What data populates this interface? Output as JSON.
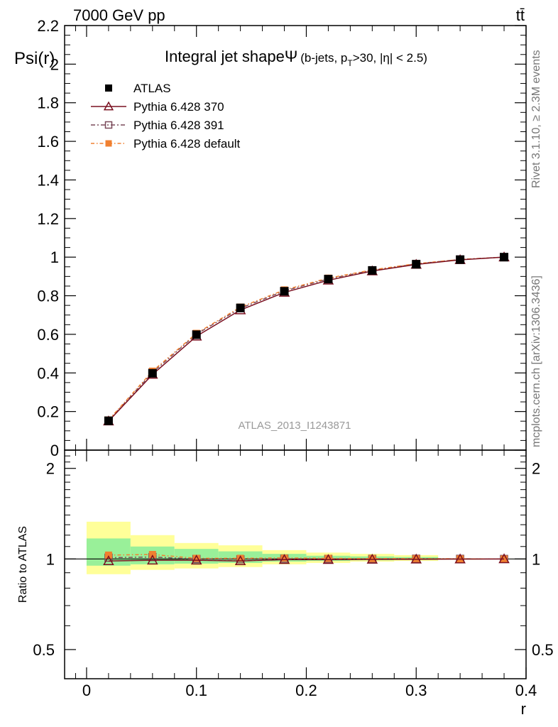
{
  "header": {
    "energy_label": "7000 GeV pp",
    "process_label": "tt̄"
  },
  "side_labels": {
    "rivet": "Rivet 3.1.10, ≥ 2.3M events",
    "mcplots": "mcplots.cern.ch [arXiv:1306.3436]"
  },
  "colors": {
    "atlas": "#000000",
    "p370": "#7a1020",
    "p391": "#7a4a5a",
    "pdefault": "#f08030",
    "band_outer": "#ffff99",
    "band_inner": "#99f099"
  },
  "chart_data": [
    {
      "type": "line",
      "title_main": "Integral jet shape",
      "title_symbol": "Ψ",
      "title_cut_prefix": "(b-jets, p",
      "title_cut_sub": "T",
      "title_cut_suffix": ">30, |η| < 2.5)",
      "ylabel": "Psi(r)",
      "xlim": [
        -0.02,
        0.4
      ],
      "ylim": [
        0,
        2.2
      ],
      "yticks": [
        {
          "v": 0,
          "label": "0"
        },
        {
          "v": 0.2,
          "label": "0.2"
        },
        {
          "v": 0.4,
          "label": "0.4"
        },
        {
          "v": 0.6,
          "label": "0.6"
        },
        {
          "v": 0.8,
          "label": "0.8"
        },
        {
          "v": 1.0,
          "label": "1"
        },
        {
          "v": 1.2,
          "label": "1.2"
        },
        {
          "v": 1.4,
          "label": "1.4"
        },
        {
          "v": 1.6,
          "label": "1.6"
        },
        {
          "v": 1.8,
          "label": "1.8"
        },
        {
          "v": 2.0,
          "label": "2"
        },
        {
          "v": 2.2,
          "label": "2.2"
        }
      ],
      "analysis_label": "ATLAS_2013_I1243871",
      "x": [
        0.02,
        0.06,
        0.1,
        0.14,
        0.18,
        0.22,
        0.26,
        0.3,
        0.34,
        0.38
      ],
      "series": [
        {
          "key": "atlas",
          "name": "ATLAS",
          "marker": "square",
          "values": [
            0.152,
            0.398,
            0.598,
            0.737,
            0.823,
            0.886,
            0.931,
            0.963,
            0.987,
            1.0
          ]
        },
        {
          "key": "p370",
          "name": "Pythia 6.428 370",
          "marker": "triangle",
          "values": [
            0.15,
            0.392,
            0.59,
            0.726,
            0.817,
            0.88,
            0.928,
            0.962,
            0.986,
            1.0
          ]
        },
        {
          "key": "p391",
          "name": "Pythia 6.428 391",
          "marker": "open-square",
          "values": [
            0.153,
            0.402,
            0.601,
            0.735,
            0.825,
            0.887,
            0.932,
            0.965,
            0.988,
            1.0
          ]
        },
        {
          "key": "pdefault",
          "name": "Pythia 6.428 default",
          "marker": "filled-square",
          "values": [
            0.156,
            0.409,
            0.605,
            0.741,
            0.83,
            0.891,
            0.934,
            0.966,
            0.988,
            1.0
          ]
        }
      ]
    },
    {
      "type": "line",
      "ylabel": "Ratio to ATLAS",
      "xlabel": "r",
      "xlim": [
        -0.02,
        0.4
      ],
      "ylim": [
        0.4,
        2.3
      ],
      "yscale": "log",
      "yticks": [
        {
          "v": 0.5,
          "label": "0.5"
        },
        {
          "v": 1,
          "label": "1"
        },
        {
          "v": 2,
          "label": "2"
        }
      ],
      "xticks": [
        {
          "v": 0,
          "label": "0"
        },
        {
          "v": 0.1,
          "label": "0.1"
        },
        {
          "v": 0.2,
          "label": "0.2"
        },
        {
          "v": 0.3,
          "label": "0.3"
        },
        {
          "v": 0.4,
          "label": "0.4"
        }
      ],
      "bins": [
        [
          0.0,
          0.04
        ],
        [
          0.04,
          0.08
        ],
        [
          0.08,
          0.12
        ],
        [
          0.12,
          0.16
        ],
        [
          0.16,
          0.2
        ],
        [
          0.2,
          0.24
        ],
        [
          0.24,
          0.28
        ],
        [
          0.28,
          0.32
        ],
        [
          0.32,
          0.36
        ],
        [
          0.36,
          0.4
        ]
      ],
      "band_outer": [
        [
          0.89,
          1.33
        ],
        [
          0.92,
          1.2
        ],
        [
          0.93,
          1.13
        ],
        [
          0.94,
          1.11
        ],
        [
          0.96,
          1.07
        ],
        [
          0.97,
          1.05
        ],
        [
          0.98,
          1.04
        ],
        [
          0.985,
          1.03
        ],
        [
          0.995,
          1.005
        ],
        [
          0.998,
          1.002
        ]
      ],
      "band_inner": [
        [
          0.95,
          1.17
        ],
        [
          0.96,
          1.1
        ],
        [
          0.965,
          1.08
        ],
        [
          0.97,
          1.06
        ],
        [
          0.98,
          1.04
        ],
        [
          0.985,
          1.025
        ],
        [
          0.99,
          1.02
        ],
        [
          0.993,
          1.015
        ],
        [
          0.998,
          1.002
        ],
        [
          0.999,
          1.001
        ]
      ],
      "x": [
        0.02,
        0.06,
        0.1,
        0.14,
        0.18,
        0.22,
        0.26,
        0.3,
        0.34,
        0.38
      ],
      "series": [
        {
          "key": "p370",
          "name": "Pythia 6.428 370",
          "marker": "triangle",
          "values": [
            0.985,
            0.99,
            0.99,
            0.985,
            0.995,
            0.995,
            0.997,
            0.998,
            0.999,
            1.0
          ]
        },
        {
          "key": "p391",
          "name": "Pythia 6.428 391",
          "marker": "open-square",
          "values": [
            1.01,
            1.015,
            1.0,
            0.997,
            1.002,
            1.001,
            1.001,
            1.002,
            1.001,
            1.0
          ]
        },
        {
          "key": "pdefault",
          "name": "Pythia 6.428 default",
          "marker": "filled-square",
          "values": [
            1.03,
            1.035,
            1.005,
            1.005,
            1.008,
            1.005,
            1.003,
            1.003,
            1.001,
            1.0
          ]
        }
      ]
    }
  ]
}
